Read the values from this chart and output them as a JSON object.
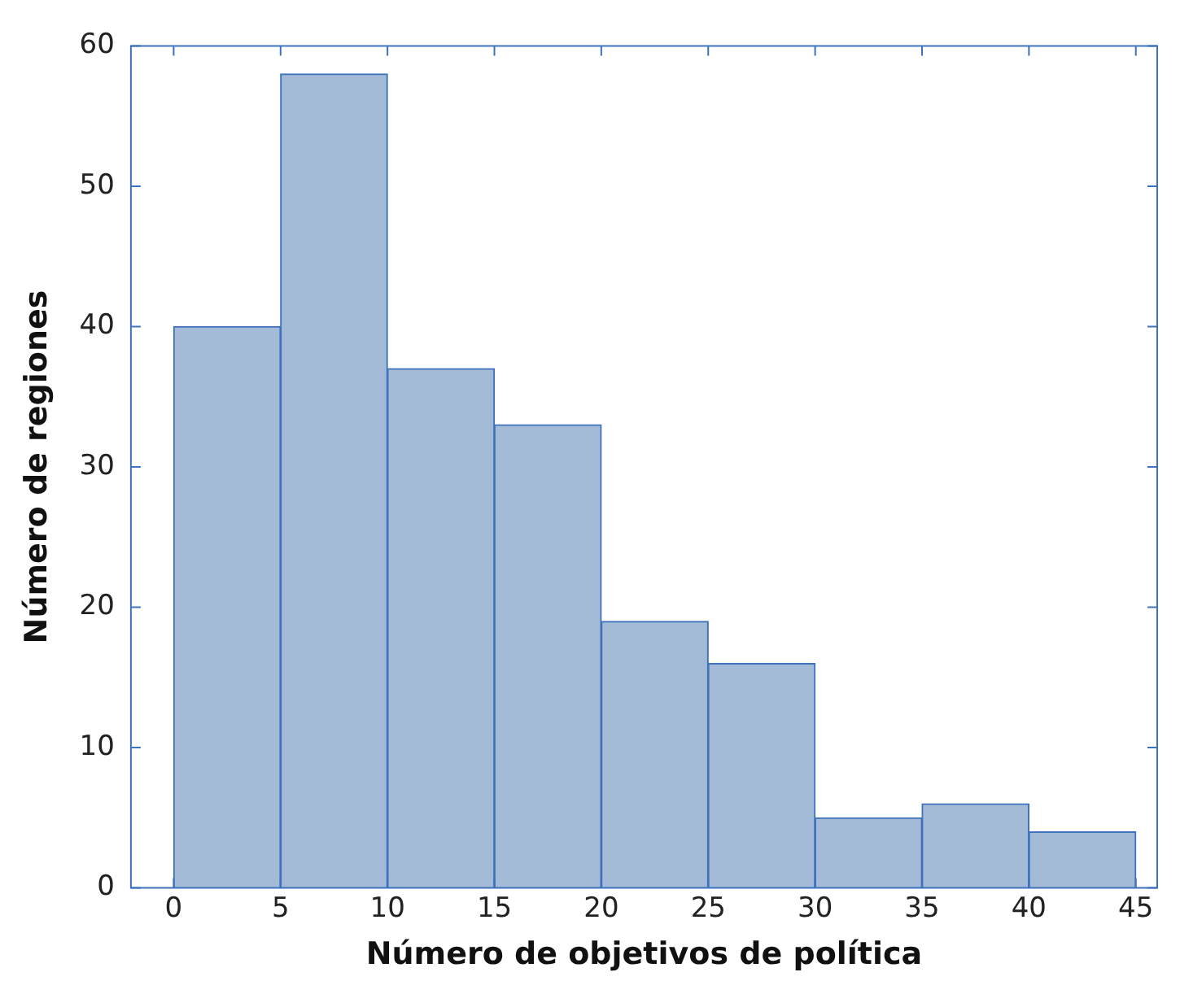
{
  "chart_data": {
    "type": "histogram",
    "xlabel": "Número de objetivos de política",
    "ylabel": "Número de regiones",
    "bins": [
      0,
      5,
      10,
      15,
      20,
      25,
      30,
      35,
      40,
      45
    ],
    "values": [
      40,
      58,
      37,
      33,
      19,
      16,
      5,
      6,
      4
    ],
    "color": "#a3bbd6",
    "xlim": [
      -2,
      46
    ],
    "xticks": [
      0,
      5,
      10,
      15,
      20,
      25,
      30,
      35,
      40,
      45
    ],
    "ylim": [
      0,
      60
    ],
    "yticks": [
      0,
      10,
      20,
      30,
      40,
      50,
      60
    ],
    "grid": false,
    "legend": false
  }
}
